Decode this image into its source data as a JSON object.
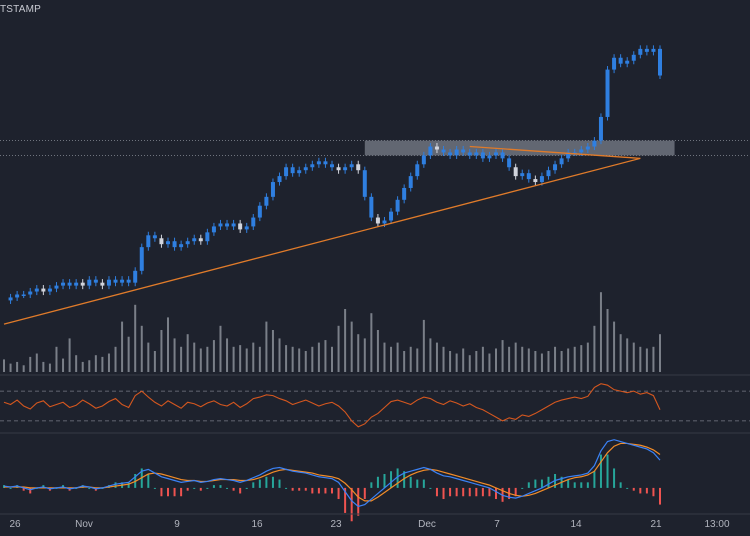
{
  "header": {
    "source_label": "TSTAMP"
  },
  "colors": {
    "background": "#1e222d",
    "candle": "#2f7fe0",
    "candle_light": "#d1d4dc",
    "trendline": "#e07b2a",
    "zone": "#9aa0ab",
    "volume": "#8b8f99",
    "rsi": "#d4571f",
    "macd_fast": "#3b82f6",
    "macd_slow": "#f28c28",
    "hist_pos": "#26a69a",
    "hist_neg": "#ef5350",
    "separator": "#363a45",
    "axis_text": "#b2b5be"
  },
  "chart_data": {
    "type": "line",
    "x_axis_ticks": [
      "26",
      "Nov",
      "9",
      "16",
      "23",
      "Dec",
      "7",
      "14",
      "21",
      "13:00"
    ],
    "price": [
      0.1,
      0.11,
      0.12,
      0.12,
      0.13,
      0.14,
      0.13,
      0.14,
      0.15,
      0.16,
      0.15,
      0.16,
      0.15,
      0.17,
      0.16,
      0.15,
      0.17,
      0.16,
      0.17,
      0.16,
      0.2,
      0.28,
      0.32,
      0.31,
      0.29,
      0.3,
      0.28,
      0.29,
      0.3,
      0.31,
      0.3,
      0.33,
      0.35,
      0.36,
      0.35,
      0.36,
      0.34,
      0.35,
      0.38,
      0.42,
      0.45,
      0.5,
      0.52,
      0.55,
      0.53,
      0.54,
      0.55,
      0.56,
      0.57,
      0.56,
      0.55,
      0.54,
      0.55,
      0.56,
      0.54,
      0.45,
      0.38,
      0.36,
      0.37,
      0.4,
      0.44,
      0.48,
      0.52,
      0.56,
      0.59,
      0.62,
      0.61,
      0.6,
      0.59,
      0.61,
      0.6,
      0.59,
      0.6,
      0.58,
      0.59,
      0.6,
      0.58,
      0.55,
      0.52,
      0.53,
      0.51,
      0.5,
      0.52,
      0.54,
      0.56,
      0.58,
      0.6,
      0.6,
      0.61,
      0.62,
      0.64,
      0.72,
      0.88,
      0.92,
      0.9,
      0.91,
      0.93,
      0.95,
      0.94,
      0.95,
      0.86
    ],
    "support_line": {
      "from": [
        0,
        0.02
      ],
      "to": [
        97,
        0.58
      ]
    },
    "resistance_line": {
      "from": [
        71,
        0.62
      ],
      "to": [
        97,
        0.58
      ]
    },
    "resistance_zone": {
      "x_from": 55,
      "x_to": 101,
      "low": 0.59,
      "high": 0.64
    },
    "reference_levels": [
      0.64,
      0.59
    ],
    "volume": [
      0.15,
      0.1,
      0.12,
      0.08,
      0.18,
      0.22,
      0.12,
      0.1,
      0.3,
      0.16,
      0.4,
      0.2,
      0.12,
      0.14,
      0.2,
      0.18,
      0.22,
      0.3,
      0.6,
      0.42,
      0.8,
      0.55,
      0.35,
      0.25,
      0.5,
      0.65,
      0.4,
      0.3,
      0.45,
      0.35,
      0.28,
      0.3,
      0.38,
      0.55,
      0.4,
      0.3,
      0.32,
      0.28,
      0.35,
      0.3,
      0.6,
      0.5,
      0.4,
      0.32,
      0.3,
      0.28,
      0.25,
      0.3,
      0.35,
      0.38,
      0.3,
      0.55,
      0.75,
      0.6,
      0.45,
      0.4,
      0.7,
      0.5,
      0.35,
      0.3,
      0.35,
      0.25,
      0.3,
      0.28,
      0.62,
      0.4,
      0.35,
      0.3,
      0.25,
      0.22,
      0.28,
      0.2,
      0.25,
      0.3,
      0.22,
      0.28,
      0.38,
      0.3,
      0.35,
      0.3,
      0.28,
      0.25,
      0.22,
      0.25,
      0.3,
      0.25,
      0.28,
      0.3,
      0.32,
      0.35,
      0.55,
      0.95,
      0.75,
      0.6,
      0.45,
      0.4,
      0.35,
      0.3,
      0.28,
      0.3,
      0.45
    ],
    "rsi": [
      55,
      52,
      58,
      50,
      46,
      54,
      57,
      49,
      52,
      55,
      48,
      51,
      58,
      53,
      47,
      50,
      56,
      60,
      52,
      48,
      64,
      70,
      62,
      55,
      50,
      57,
      52,
      47,
      55,
      53,
      49,
      54,
      57,
      52,
      50,
      55,
      48,
      53,
      60,
      62,
      65,
      64,
      60,
      57,
      52,
      55,
      58,
      54,
      50,
      53,
      55,
      50,
      42,
      30,
      22,
      26,
      35,
      40,
      48,
      56,
      58,
      55,
      52,
      58,
      62,
      60,
      55,
      52,
      57,
      54,
      50,
      53,
      48,
      45,
      40,
      35,
      30,
      34,
      32,
      38,
      36,
      40,
      45,
      50,
      55,
      58,
      60,
      62,
      60,
      63,
      75,
      80,
      78,
      72,
      70,
      68,
      70,
      66,
      68,
      64,
      45
    ],
    "rsi_levels": [
      70,
      30
    ],
    "macd": [
      0.2,
      0.1,
      0.2,
      0.0,
      -0.2,
      0.0,
      0.1,
      -0.1,
      0.0,
      0.1,
      -0.1,
      0.0,
      0.2,
      0.1,
      -0.1,
      0.0,
      0.2,
      0.4,
      0.5,
      0.6,
      1.2,
      1.8,
      2.0,
      1.6,
      1.2,
      1.0,
      0.8,
      0.6,
      0.7,
      0.8,
      0.6,
      0.7,
      0.9,
      1.0,
      0.9,
      0.8,
      0.6,
      0.8,
      1.1,
      1.4,
      1.8,
      2.1,
      2.2,
      2.0,
      1.8,
      1.7,
      1.6,
      1.4,
      1.2,
      1.1,
      1.0,
      0.6,
      -0.4,
      -1.4,
      -2.0,
      -1.8,
      -1.2,
      -0.6,
      0.0,
      0.6,
      1.2,
      1.6,
      1.8,
      2.0,
      2.2,
      2.0,
      1.6,
      1.3,
      1.2,
      1.0,
      0.8,
      0.6,
      0.4,
      0.2,
      0.0,
      -0.4,
      -0.8,
      -1.0,
      -1.1,
      -0.9,
      -0.6,
      -0.3,
      0.0,
      0.4,
      0.8,
      1.0,
      1.2,
      1.3,
      1.4,
      1.6,
      2.4,
      4.0,
      5.0,
      5.2,
      5.0,
      4.8,
      4.6,
      4.4,
      4.2,
      3.8,
      3.0
    ],
    "signal": [
      0.1,
      0.1,
      0.1,
      0.1,
      0.0,
      0.0,
      0.0,
      0.0,
      0.0,
      0.0,
      0.0,
      0.0,
      0.1,
      0.1,
      0.0,
      0.0,
      0.1,
      0.2,
      0.3,
      0.4,
      0.7,
      1.1,
      1.5,
      1.6,
      1.5,
      1.3,
      1.1,
      0.9,
      0.8,
      0.8,
      0.7,
      0.7,
      0.8,
      0.9,
      0.9,
      0.9,
      0.8,
      0.8,
      0.9,
      1.1,
      1.4,
      1.7,
      1.9,
      2.0,
      1.9,
      1.8,
      1.7,
      1.6,
      1.4,
      1.3,
      1.2,
      1.0,
      0.5,
      -0.2,
      -1.0,
      -1.4,
      -1.4,
      -1.0,
      -0.5,
      0.0,
      0.5,
      1.0,
      1.4,
      1.7,
      1.9,
      2.0,
      1.9,
      1.7,
      1.5,
      1.3,
      1.1,
      0.9,
      0.7,
      0.5,
      0.3,
      0.0,
      -0.3,
      -0.6,
      -0.8,
      -0.9,
      -0.8,
      -0.6,
      -0.3,
      0.0,
      0.3,
      0.6,
      0.9,
      1.1,
      1.2,
      1.4,
      1.8,
      2.8,
      3.8,
      4.5,
      4.8,
      4.8,
      4.7,
      4.6,
      4.4,
      4.1,
      3.6
    ]
  }
}
